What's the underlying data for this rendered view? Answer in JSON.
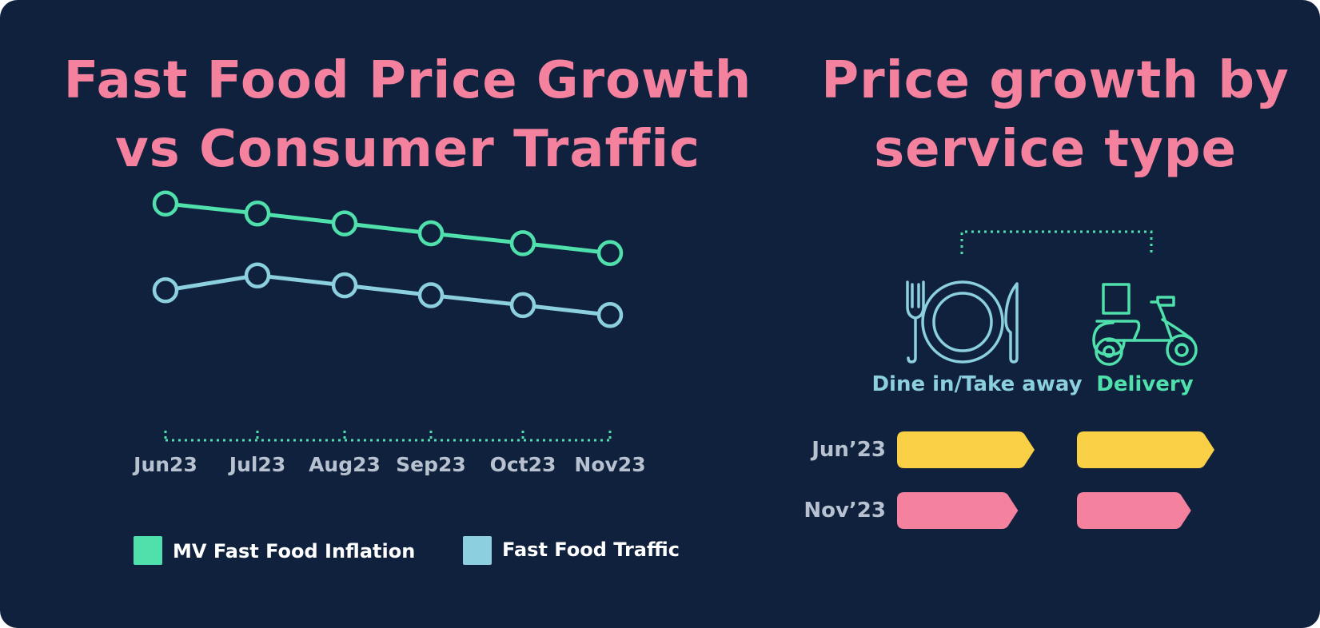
{
  "colors": {
    "background": "#0f213d",
    "title": "#f4829f",
    "inflation": "#4fe0ac",
    "traffic": "#8ccfdf",
    "tick_text": "#b7c1cf",
    "jun_bar": "#f9cf45",
    "nov_bar": "#f4829f"
  },
  "chart_data": [
    {
      "type": "line",
      "title_lines": [
        "Fast Food Price Growth",
        "vs Consumer Traffic"
      ],
      "categories": [
        "Jun23",
        "Jul23",
        "Aug23",
        "Sep23",
        "Oct23",
        "Nov23"
      ],
      "y_unit": "relative index (no axis shown)",
      "ylim": [
        0,
        100
      ],
      "grid": false,
      "legend_position": "bottom",
      "series": [
        {
          "name": "MV Fast Food Inflation",
          "color": "#4fe0ac",
          "values": [
            92,
            88,
            84,
            80,
            76,
            72
          ]
        },
        {
          "name": "Fast Food Traffic",
          "color": "#8ccfdf",
          "values": [
            57,
            63,
            59,
            55,
            51,
            47
          ]
        }
      ]
    },
    {
      "type": "bar",
      "orientation": "horizontal",
      "title_lines": [
        "Price growth by",
        "service type"
      ],
      "groups": [
        {
          "name": "Dine in/Take away",
          "icon": "plate-cutlery-icon",
          "color": "#8ccfdf"
        },
        {
          "name": "Delivery",
          "icon": "scooter-icon",
          "color": "#4fe0ac"
        }
      ],
      "categories": [
        "Jun’23",
        "Nov’23"
      ],
      "series": [
        {
          "name": "Jun’23",
          "color": "#f9cf45",
          "values": [
            100,
            100
          ]
        },
        {
          "name": "Nov’23",
          "color": "#f4829f",
          "values": [
            88,
            83
          ]
        }
      ],
      "xlim": [
        0,
        100
      ]
    }
  ]
}
